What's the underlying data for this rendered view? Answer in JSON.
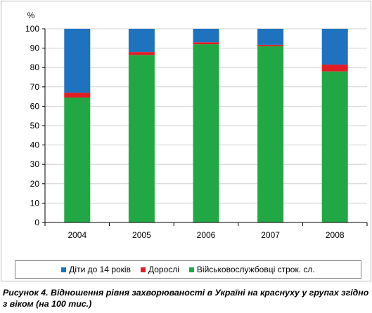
{
  "chart_data": {
    "type": "bar",
    "stacked": true,
    "ylabel": "%",
    "ylim": [
      0,
      100
    ],
    "yticks": [
      0,
      10,
      20,
      30,
      40,
      50,
      60,
      70,
      80,
      90,
      100
    ],
    "categories": [
      "2004",
      "2005",
      "2006",
      "2007",
      "2008"
    ],
    "series": [
      {
        "name": "Військовослужбовці строк. сл.",
        "color": "#21a845",
        "values": [
          64.5,
          86.5,
          92,
          91,
          78
        ]
      },
      {
        "name": "Дорослі",
        "color": "#e31c24",
        "values": [
          2.5,
          1.5,
          1,
          0.7,
          3.5
        ]
      },
      {
        "name": "Діти до 14 років",
        "color": "#1f72bd",
        "values": [
          33,
          12,
          7,
          8.3,
          18.5
        ]
      }
    ],
    "legend_order": [
      "Діти до 14 років",
      "Дорослі",
      "Військовослужбовці строк. сл."
    ],
    "legend_position": "bottom",
    "grid": true
  },
  "caption": {
    "label": "Рисунок 4.",
    "text": " Відношення рівня захворюваності в Україні на краснуху у групах згідно з віком (на 100 тис.)"
  }
}
